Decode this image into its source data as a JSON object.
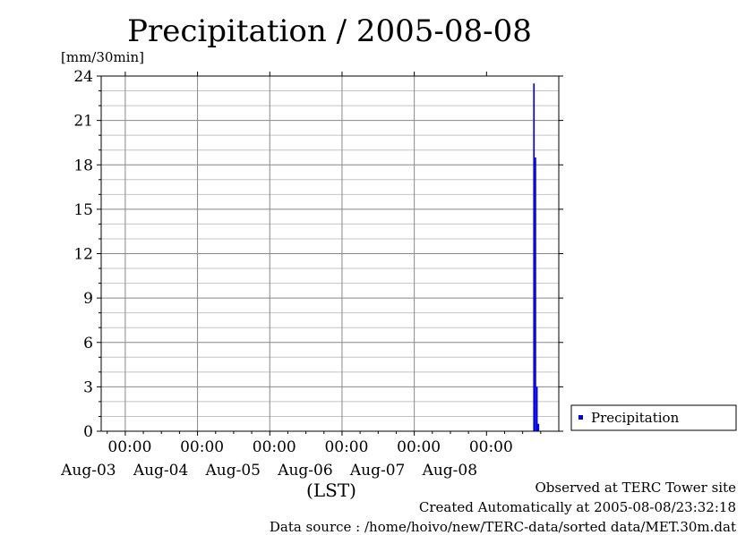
{
  "chart_data": {
    "type": "bar",
    "title": "Precipitation / 2005-08-08",
    "ylabel": "[mm/30min]",
    "xlabel": "(LST)",
    "ylim": [
      0,
      24
    ],
    "yticks": [
      "0",
      "3",
      "6",
      "9",
      "12",
      "15",
      "18",
      "21",
      "24"
    ],
    "xlim": [
      "2005-08-02 16:00",
      "2005-08-08 24:00"
    ],
    "xticks": [
      {
        "time": "00:00",
        "date": "Aug-03"
      },
      {
        "time": "00:00",
        "date": "Aug-04"
      },
      {
        "time": "00:00",
        "date": "Aug-05"
      },
      {
        "time": "00:00",
        "date": "Aug-06"
      },
      {
        "time": "00:00",
        "date": "Aug-07"
      },
      {
        "time": "00:00",
        "date": "Aug-08"
      }
    ],
    "grid": true,
    "legend_position": "right",
    "series": [
      {
        "name": "Precipitation",
        "color": "#0000dd",
        "points": [
          {
            "x": "2005-08-08 15:30",
            "y": 23.5
          },
          {
            "x": "2005-08-08 16:00",
            "y": 18.5
          },
          {
            "x": "2005-08-08 16:30",
            "y": 3.0
          },
          {
            "x": "2005-08-08 17:00",
            "y": 0.5
          }
        ]
      }
    ]
  },
  "footer": {
    "observed": "Observed at TERC Tower site",
    "created": "Created Automatically at 2005-08-08/23:32:18",
    "source": "Data source : /home/hoivo/new/TERC-data/sorted  data/MET.30m.dat"
  }
}
